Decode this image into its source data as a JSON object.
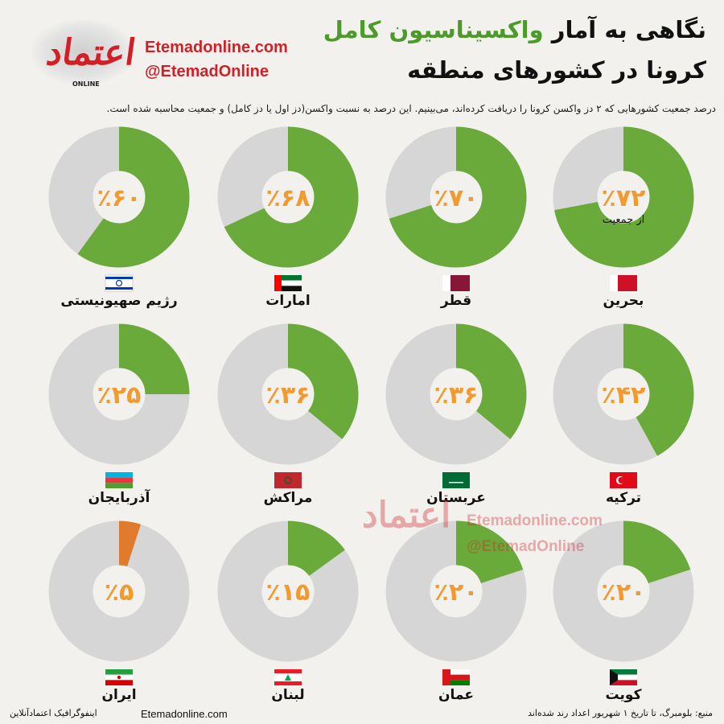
{
  "header": {
    "logo_sub": "ONLINE",
    "site": "Etemadonline.com",
    "handle": "@EtemadOnline",
    "title_line1_prefix": "نگاهی به آمار",
    "title_line1_highlight": "واکسیناسیون کامل",
    "title_line2": "کرونا در کشورهای منطقه",
    "subtitle": "درصد جمعیت کشورهایی که ۲ دز واکسن کرونا را دریافت کرده‌اند، می‌بینیم. این درصد به نسبت واکسن(دز اول یا دز کامل) و جمعیت محاسبه شده است."
  },
  "colors": {
    "vaccinated": "#6aaa3a",
    "unvaccinated": "#d6d6d6",
    "highlight_iran": "#e07a2c",
    "percent_text": "#f39a2e",
    "brand_red": "#d21f26"
  },
  "chart_data": {
    "type": "pie",
    "variant": "donut-grid",
    "unit_suffix": "از جمعیت",
    "items": [
      {
        "country": "بحرین",
        "percent": 72,
        "label": "٪۷۲",
        "flag": "bahrain-flag"
      },
      {
        "country": "قطر",
        "percent": 70,
        "label": "٪۷۰",
        "flag": "qatar-flag"
      },
      {
        "country": "امارات",
        "percent": 68,
        "label": "٪۶۸",
        "flag": "uae-flag"
      },
      {
        "country": "رژیم صهیونیستی",
        "percent": 60,
        "label": "٪۶۰",
        "flag": "israel-flag"
      },
      {
        "country": "ترکیه",
        "percent": 42,
        "label": "٪۴۲",
        "flag": "turkey-flag"
      },
      {
        "country": "عربستان",
        "percent": 36,
        "label": "٪۳۶",
        "flag": "saudi-flag"
      },
      {
        "country": "مراکش",
        "percent": 36,
        "label": "٪۳۶",
        "flag": "morocco-flag"
      },
      {
        "country": "آذربایجان",
        "percent": 25,
        "label": "٪۲۵",
        "flag": "azerbaijan-flag"
      },
      {
        "country": "کویت",
        "percent": 20,
        "label": "٪۲۰",
        "flag": "kuwait-flag"
      },
      {
        "country": "عمان",
        "percent": 20,
        "label": "٪۲۰",
        "flag": "oman-flag"
      },
      {
        "country": "لبنان",
        "percent": 15,
        "label": "٪۱۵",
        "flag": "lebanon-flag"
      },
      {
        "country": "ایران",
        "percent": 5,
        "label": "٪۵",
        "flag": "iran-flag",
        "highlight": true
      }
    ]
  },
  "watermark": {
    "site": "Etemadonline.com",
    "handle": "@EtemadOnline"
  },
  "footer": {
    "credit": "اینفوگرافیک اعتمادآنلاین",
    "site": "Etemadonline.com",
    "source": "منبع: بلومبرگ، تا تاریخ ۱ شهریور    اعداد رند شده‌اند"
  }
}
